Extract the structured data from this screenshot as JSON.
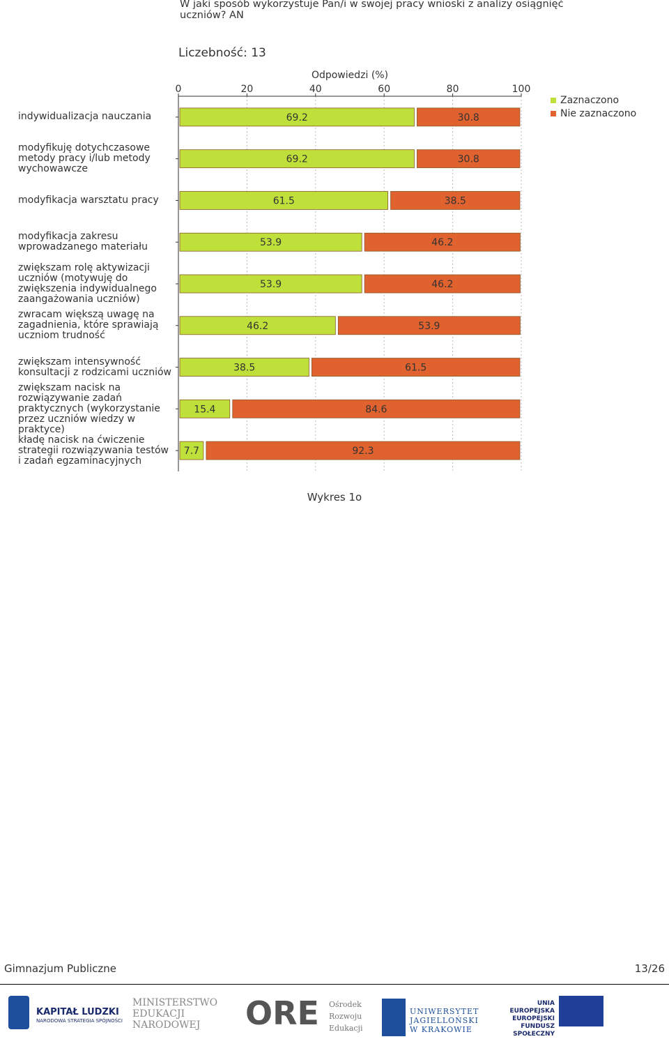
{
  "chart_data": {
    "type": "stacked-barh",
    "title": "W jaki sposób wykorzystuje Pan/i w swojej pracy wnioski z analizy osiągnięć uczniów? AN",
    "subtitle": "Liczebność: 13",
    "x_label": "Odpowiedzi (%)",
    "categories": [
      "indywidualizacja nauczania",
      "modyfikuję dotychczasowe metody pracy i/lub metody wychowawcze",
      "modyfikacja warsztatu pracy",
      "modyfikacja zakresu wprowadzanego materiału",
      "zwiększam rolę aktywizacji uczniów (motywuję do zwiększenia indywidualnego zaangażowania uczniów)",
      "zwracam większą uwagę na zagadnienia, które sprawiają uczniom trudność",
      "zwiększam intensywność konsultacji z rodzicami uczniów",
      "zwiększam nacisk na rozwiązywanie zadań praktycznych (wykorzystanie przez uczniów wiedzy w praktyce)",
      "kładę nacisk na ćwiczenie strategii rozwiązywania testów i zadań egzaminacyjnych"
    ],
    "series": [
      {
        "name": "Zaznaczono",
        "color": "#bfe03a",
        "values": [
          69.2,
          69.2,
          61.5,
          53.9,
          53.9,
          46.2,
          38.5,
          15.4,
          7.7
        ]
      },
      {
        "name": "Nie zaznaczono",
        "color": "#e0622e",
        "values": [
          30.8,
          30.8,
          38.5,
          46.2,
          46.2,
          53.9,
          61.5,
          84.6,
          92.3
        ]
      }
    ],
    "xlim": [
      0,
      100
    ],
    "xticks": [
      0,
      20,
      40,
      60,
      80,
      100
    ],
    "grid": true,
    "legend": "top-right"
  },
  "caption": "Wykres 1o",
  "footer": {
    "left": "Gimnazjum Publiczne",
    "right": "13/26"
  },
  "logos": [
    "KAPITAŁ LUDZKI",
    "NARODOWA STRATEGIA SPÓJNOŚCI",
    "MINISTERSTWO",
    "EDUKACJI",
    "NARODOWEJ",
    "ORE",
    "Ośrodek",
    "Rozwoju",
    "Edukacji",
    "UNIWERSYTET",
    "JAGIELLOŃSKI",
    "W KRAKOWIE",
    "UNIA EUROPEJSKA",
    "EUROPEJSKI",
    "FUNDUSZ SPOŁECZNY"
  ]
}
